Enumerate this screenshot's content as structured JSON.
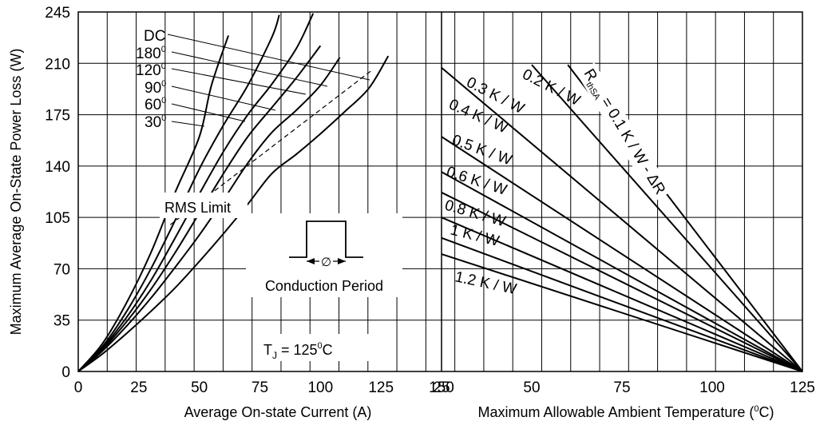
{
  "chart_data": {
    "type": "line",
    "ylabel": "Maximum Average On-State Power Loss (W)",
    "yticks": [
      "0",
      "35",
      "70",
      "105",
      "140",
      "175",
      "210",
      "245"
    ],
    "ylim": [
      0,
      245
    ],
    "grid": true,
    "left_panel": {
      "xlabel": "Average On-state Current (A)",
      "xticks": [
        "0",
        "25",
        "50",
        "75",
        "100",
        "125",
        "150"
      ],
      "xlim": [
        0,
        150
      ],
      "series": [
        {
          "name": "DC",
          "x": [
            0,
            10,
            20,
            30,
            40,
            50,
            60,
            70,
            80,
            90,
            100,
            110,
            120,
            128
          ],
          "y": [
            0,
            12,
            26,
            41,
            57,
            75,
            94,
            114,
            135,
            148,
            162,
            177,
            193,
            215
          ]
        },
        {
          "name": "180°",
          "x": [
            0,
            10,
            20,
            30,
            40,
            50,
            60,
            70,
            80,
            90,
            100,
            108
          ],
          "y": [
            0,
            14,
            31,
            50,
            71,
            93,
            117,
            142,
            163,
            178,
            195,
            214
          ]
        },
        {
          "name": "120°",
          "x": [
            0,
            10,
            20,
            30,
            40,
            50,
            60,
            70,
            80,
            90,
            100
          ],
          "y": [
            0,
            15,
            34,
            56,
            81,
            108,
            135,
            160,
            180,
            200,
            222
          ]
        },
        {
          "name": "90°",
          "x": [
            0,
            10,
            20,
            30,
            40,
            50,
            60,
            70,
            80,
            90,
            97
          ],
          "y": [
            0,
            16,
            37,
            62,
            91,
            121,
            150,
            175,
            196,
            220,
            244
          ]
        },
        {
          "name": "60°",
          "x": [
            0,
            10,
            20,
            30,
            40,
            50,
            60,
            70,
            80,
            83
          ],
          "y": [
            0,
            17,
            41,
            70,
            103,
            138,
            168,
            195,
            228,
            243
          ]
        },
        {
          "name": "30°",
          "x": [
            0,
            10,
            20,
            30,
            40,
            50,
            55,
            62
          ],
          "y": [
            0,
            19,
            47,
            81,
            122,
            160,
            195,
            229
          ]
        }
      ],
      "rms_limit": {
        "x": [
          38,
          121
        ],
        "y": [
          100,
          205
        ]
      }
    },
    "right_panel": {
      "xlabel": "Maximum Allowable Ambient Temperature (°C)",
      "xticks": [
        "25",
        "50",
        "75",
        "100",
        "125"
      ],
      "xlim": [
        25,
        125
      ],
      "series": [
        {
          "name": "0.1 K / W - ΔR",
          "x": [
            60,
            125
          ],
          "y": [
            209,
            0
          ]
        },
        {
          "name": "0.2 K / W",
          "x": [
            50,
            125
          ],
          "y": [
            209,
            0
          ]
        },
        {
          "name": "0.3 K / W",
          "x": [
            25,
            125
          ],
          "y": [
            207,
            0
          ]
        },
        {
          "name": "0.4 K / W",
          "x": [
            25,
            125
          ],
          "y": [
            160,
            0
          ]
        },
        {
          "name": "0.5 K / W",
          "x": [
            25,
            125
          ],
          "y": [
            136,
            0
          ]
        },
        {
          "name": "0.6 K / W",
          "x": [
            25,
            125
          ],
          "y": [
            122,
            0
          ]
        },
        {
          "name": "0.8 K / W",
          "x": [
            25,
            125
          ],
          "y": [
            105,
            0
          ]
        },
        {
          "name": "1 K / W",
          "x": [
            25,
            125
          ],
          "y": [
            91,
            0
          ]
        },
        {
          "name": "1.2 K / W",
          "x": [
            25,
            125
          ],
          "y": [
            80,
            0
          ]
        }
      ]
    },
    "annotations": {
      "rms_limit": "RMS Limit",
      "conduction_period": "Conduction Period",
      "phi": "∅",
      "tj": "T",
      "tj_sub": "J",
      "tj_value": " = 125",
      "tj_deg": "0",
      "tj_unit": "C",
      "rthsa": "R",
      "rthsa_sub": "thSA",
      "rthsa_value": "= 0.1 K / W - ΔR",
      "xlabel_right_pre": "Maximum Allowable Ambient Temperature (",
      "xlabel_right_sup": "0",
      "xlabel_right_post": "C)"
    },
    "curve_labels": [
      {
        "base": "DC",
        "sup": ""
      },
      {
        "base": "180",
        "sup": "0"
      },
      {
        "base": "120",
        "sup": "0"
      },
      {
        "base": "90",
        "sup": "0"
      },
      {
        "base": "60",
        "sup": "0"
      },
      {
        "base": "30",
        "sup": "0"
      }
    ],
    "heatsink_labels": [
      "0.2 K / W",
      "0.3 K / W",
      "0.4 K / W",
      "0.5 K / W",
      "0.6 K / W",
      "0.8 K / W",
      "1 K / W",
      "1.2 K / W"
    ]
  }
}
